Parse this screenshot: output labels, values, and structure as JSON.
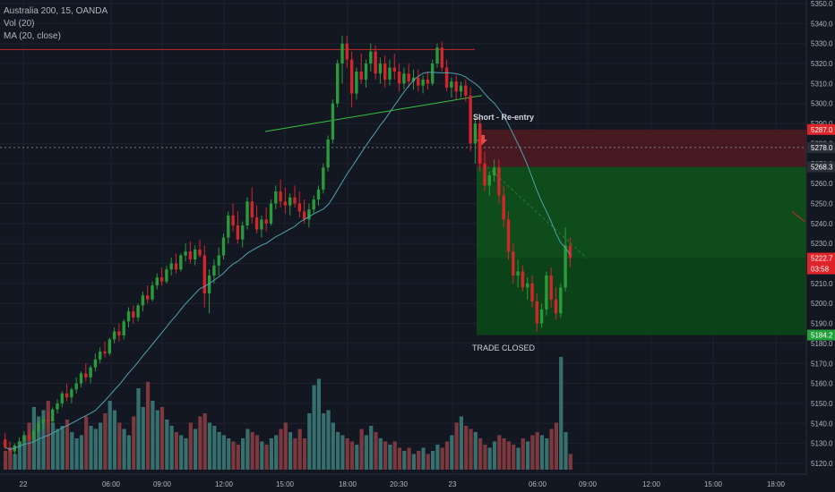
{
  "legend": {
    "symbol": "Australia 200, 15, OANDA",
    "vol": "Vol (20)",
    "ma": "MA (20, close)"
  },
  "annotations": {
    "short": "Short - Re-entry",
    "closed": "TRADE CLOSED"
  },
  "price_axis": {
    "ticks": [
      "5350.0",
      "5340.0",
      "5330.0",
      "5320.0",
      "5310.0",
      "5300.0",
      "5290.0",
      "5280.0",
      "5270.0",
      "5260.0",
      "5250.0",
      "5240.0",
      "5230.0",
      "5220.0",
      "5210.0",
      "5200.0",
      "5190.0",
      "5180.0",
      "5170.0",
      "5160.0",
      "5150.0",
      "5140.0",
      "5130.0",
      "5120.0"
    ],
    "badges": [
      {
        "label": "5287.0",
        "value": 5287.0,
        "color": "#e0242a"
      },
      {
        "label": "5278.0",
        "value": 5278.0,
        "color": "#2a2e39"
      },
      {
        "label": "5268.3",
        "value": 5268.3,
        "color": "#2a2e39"
      },
      {
        "label": "5222.7",
        "value": 5222.7,
        "color": "#e0242a"
      },
      {
        "label": "03:58",
        "value": 5217.3,
        "color": "#e0242a"
      },
      {
        "label": "5184.2",
        "value": 5184.2,
        "color": "#22a03c"
      }
    ]
  },
  "time_axis": {
    "ticks": [
      "22",
      "06:00",
      "09:00",
      "12:00",
      "15:00",
      "18:00",
      "20:30",
      "23",
      "06:00",
      "09:00",
      "12:00",
      "15:00",
      "18:00"
    ]
  },
  "colors": {
    "up": "#2a9a3a",
    "down": "#d3262a",
    "vol_up": "#3b7a77",
    "vol_down": "#8a3c40",
    "ma": "#4ea1ad",
    "grid": "#1e222d",
    "resistance": "#c22a2a",
    "trendline": "#34c53f",
    "stop_zone": "#4a1a22",
    "target_zone": "#0f4f1c"
  },
  "chart_data": {
    "type": "candlestick",
    "symbol": "Australia 200",
    "interval": "15",
    "ylim": [
      5116,
      5352
    ],
    "candles": [
      [
        5132,
        5135,
        5127,
        5128
      ],
      [
        5128,
        5131,
        5125,
        5126
      ],
      [
        5126,
        5130,
        5124,
        5129
      ],
      [
        5129,
        5133,
        5127,
        5131
      ],
      [
        5131,
        5136,
        5129,
        5134
      ],
      [
        5134,
        5137,
        5131,
        5132
      ],
      [
        5132,
        5137,
        5130,
        5136
      ],
      [
        5136,
        5141,
        5134,
        5140
      ],
      [
        5140,
        5144,
        5137,
        5142
      ],
      [
        5142,
        5146,
        5139,
        5141
      ],
      [
        5141,
        5148,
        5140,
        5147
      ],
      [
        5147,
        5152,
        5145,
        5150
      ],
      [
        5150,
        5156,
        5148,
        5155
      ],
      [
        5155,
        5160,
        5151,
        5153
      ],
      [
        5153,
        5158,
        5150,
        5157
      ],
      [
        5157,
        5163,
        5155,
        5160
      ],
      [
        5160,
        5166,
        5158,
        5165
      ],
      [
        5165,
        5170,
        5161,
        5163
      ],
      [
        5163,
        5169,
        5160,
        5168
      ],
      [
        5168,
        5175,
        5166,
        5172
      ],
      [
        5172,
        5178,
        5170,
        5176
      ],
      [
        5176,
        5181,
        5173,
        5175
      ],
      [
        5175,
        5183,
        5174,
        5182
      ],
      [
        5182,
        5188,
        5180,
        5186
      ],
      [
        5186,
        5190,
        5181,
        5184
      ],
      [
        5184,
        5192,
        5182,
        5191
      ],
      [
        5191,
        5198,
        5188,
        5196
      ],
      [
        5196,
        5199,
        5190,
        5193
      ],
      [
        5193,
        5200,
        5191,
        5199
      ],
      [
        5199,
        5206,
        5196,
        5204
      ],
      [
        5204,
        5209,
        5200,
        5202
      ],
      [
        5202,
        5211,
        5201,
        5209
      ],
      [
        5209,
        5215,
        5207,
        5213
      ],
      [
        5213,
        5218,
        5209,
        5211
      ],
      [
        5211,
        5219,
        5210,
        5217
      ],
      [
        5217,
        5223,
        5214,
        5220
      ],
      [
        5220,
        5225,
        5215,
        5217
      ],
      [
        5217,
        5225,
        5216,
        5224
      ],
      [
        5224,
        5230,
        5221,
        5226
      ],
      [
        5226,
        5231,
        5220,
        5222
      ],
      [
        5222,
        5229,
        5219,
        5227
      ],
      [
        5227,
        5232,
        5223,
        5224
      ],
      [
        5224,
        5229,
        5198,
        5205
      ],
      [
        5205,
        5217,
        5195,
        5214
      ],
      [
        5214,
        5222,
        5210,
        5219
      ],
      [
        5219,
        5228,
        5214,
        5224
      ],
      [
        5224,
        5235,
        5222,
        5233
      ],
      [
        5233,
        5246,
        5230,
        5244
      ],
      [
        5244,
        5250,
        5236,
        5239
      ],
      [
        5239,
        5246,
        5230,
        5232
      ],
      [
        5232,
        5241,
        5228,
        5239
      ],
      [
        5239,
        5253,
        5237,
        5251
      ],
      [
        5251,
        5258,
        5240,
        5243
      ],
      [
        5243,
        5249,
        5235,
        5237
      ],
      [
        5237,
        5244,
        5233,
        5242
      ],
      [
        5242,
        5248,
        5236,
        5240
      ],
      [
        5240,
        5252,
        5239,
        5250
      ],
      [
        5250,
        5259,
        5247,
        5256
      ],
      [
        5256,
        5262,
        5248,
        5251
      ],
      [
        5251,
        5258,
        5245,
        5249
      ],
      [
        5249,
        5255,
        5244,
        5253
      ],
      [
        5253,
        5259,
        5248,
        5250
      ],
      [
        5250,
        5256,
        5243,
        5246
      ],
      [
        5246,
        5252,
        5240,
        5242
      ],
      [
        5242,
        5250,
        5238,
        5247
      ],
      [
        5247,
        5254,
        5245,
        5252
      ],
      [
        5252,
        5259,
        5249,
        5257
      ],
      [
        5257,
        5270,
        5255,
        5268
      ],
      [
        5268,
        5284,
        5266,
        5282
      ],
      [
        5282,
        5302,
        5280,
        5300
      ],
      [
        5300,
        5322,
        5298,
        5320
      ],
      [
        5320,
        5334,
        5310,
        5330
      ],
      [
        5330,
        5334,
        5318,
        5322
      ],
      [
        5322,
        5326,
        5298,
        5305
      ],
      [
        5305,
        5318,
        5302,
        5316
      ],
      [
        5316,
        5325,
        5310,
        5312
      ],
      [
        5312,
        5322,
        5308,
        5320
      ],
      [
        5320,
        5330,
        5316,
        5326
      ],
      [
        5326,
        5329,
        5312,
        5315
      ],
      [
        5315,
        5323,
        5310,
        5320
      ],
      [
        5320,
        5324,
        5308,
        5312
      ],
      [
        5312,
        5322,
        5309,
        5318
      ],
      [
        5318,
        5325,
        5312,
        5316
      ],
      [
        5316,
        5320,
        5306,
        5310
      ],
      [
        5310,
        5318,
        5307,
        5315
      ],
      [
        5315,
        5320,
        5308,
        5311
      ],
      [
        5311,
        5317,
        5307,
        5313
      ],
      [
        5313,
        5317,
        5306,
        5309
      ],
      [
        5309,
        5314,
        5305,
        5312
      ],
      [
        5312,
        5316,
        5307,
        5310
      ],
      [
        5310,
        5322,
        5309,
        5320
      ],
      [
        5320,
        5330,
        5318,
        5328
      ],
      [
        5328,
        5331,
        5316,
        5318
      ],
      [
        5318,
        5322,
        5306,
        5308
      ],
      [
        5308,
        5313,
        5303,
        5311
      ],
      [
        5311,
        5314,
        5302,
        5306
      ],
      [
        5306,
        5311,
        5303,
        5309
      ],
      [
        5309,
        5312,
        5301,
        5304
      ],
      [
        5304,
        5308,
        5276,
        5280
      ],
      [
        5280,
        5293,
        5270,
        5290
      ],
      [
        5290,
        5293,
        5266,
        5270
      ],
      [
        5270,
        5276,
        5256,
        5259
      ],
      [
        5259,
        5266,
        5254,
        5264
      ],
      [
        5264,
        5272,
        5261,
        5268
      ],
      [
        5268,
        5272,
        5250,
        5254
      ],
      [
        5254,
        5259,
        5238,
        5242
      ],
      [
        5242,
        5246,
        5222,
        5226
      ],
      [
        5226,
        5230,
        5210,
        5214
      ],
      [
        5214,
        5222,
        5208,
        5216
      ],
      [
        5216,
        5219,
        5206,
        5208
      ],
      [
        5208,
        5213,
        5202,
        5210
      ],
      [
        5210,
        5214,
        5198,
        5201
      ],
      [
        5201,
        5205,
        5186,
        5190
      ],
      [
        5190,
        5200,
        5188,
        5197
      ],
      [
        5197,
        5216,
        5194,
        5214
      ],
      [
        5214,
        5218,
        5198,
        5202
      ],
      [
        5202,
        5208,
        5192,
        5195
      ],
      [
        5195,
        5210,
        5193,
        5208
      ],
      [
        5208,
        5238,
        5206,
        5229
      ],
      [
        5229,
        5233,
        5218,
        5222.7
      ]
    ],
    "volume": [
      12,
      14,
      10,
      18,
      22,
      30,
      40,
      34,
      38,
      44,
      30,
      26,
      28,
      32,
      24,
      20,
      22,
      34,
      28,
      26,
      30,
      36,
      44,
      38,
      30,
      26,
      22,
      34,
      52,
      40,
      56,
      44,
      38,
      40,
      32,
      28,
      24,
      22,
      20,
      30,
      26,
      34,
      36,
      30,
      28,
      24,
      22,
      20,
      18,
      16,
      20,
      26,
      24,
      22,
      18,
      16,
      20,
      22,
      26,
      30,
      24,
      20,
      26,
      20,
      36,
      54,
      58,
      36,
      38,
      30,
      24,
      22,
      20,
      18,
      16,
      26,
      22,
      28,
      24,
      20,
      18,
      16,
      18,
      14,
      12,
      14,
      10,
      12,
      14,
      10,
      12,
      16,
      14,
      18,
      22,
      30,
      34,
      28,
      26,
      24,
      20,
      16,
      14,
      18,
      22,
      20,
      18,
      16,
      14,
      20,
      18,
      22,
      24,
      22,
      20,
      26,
      30,
      72,
      24,
      10
    ]
  }
}
